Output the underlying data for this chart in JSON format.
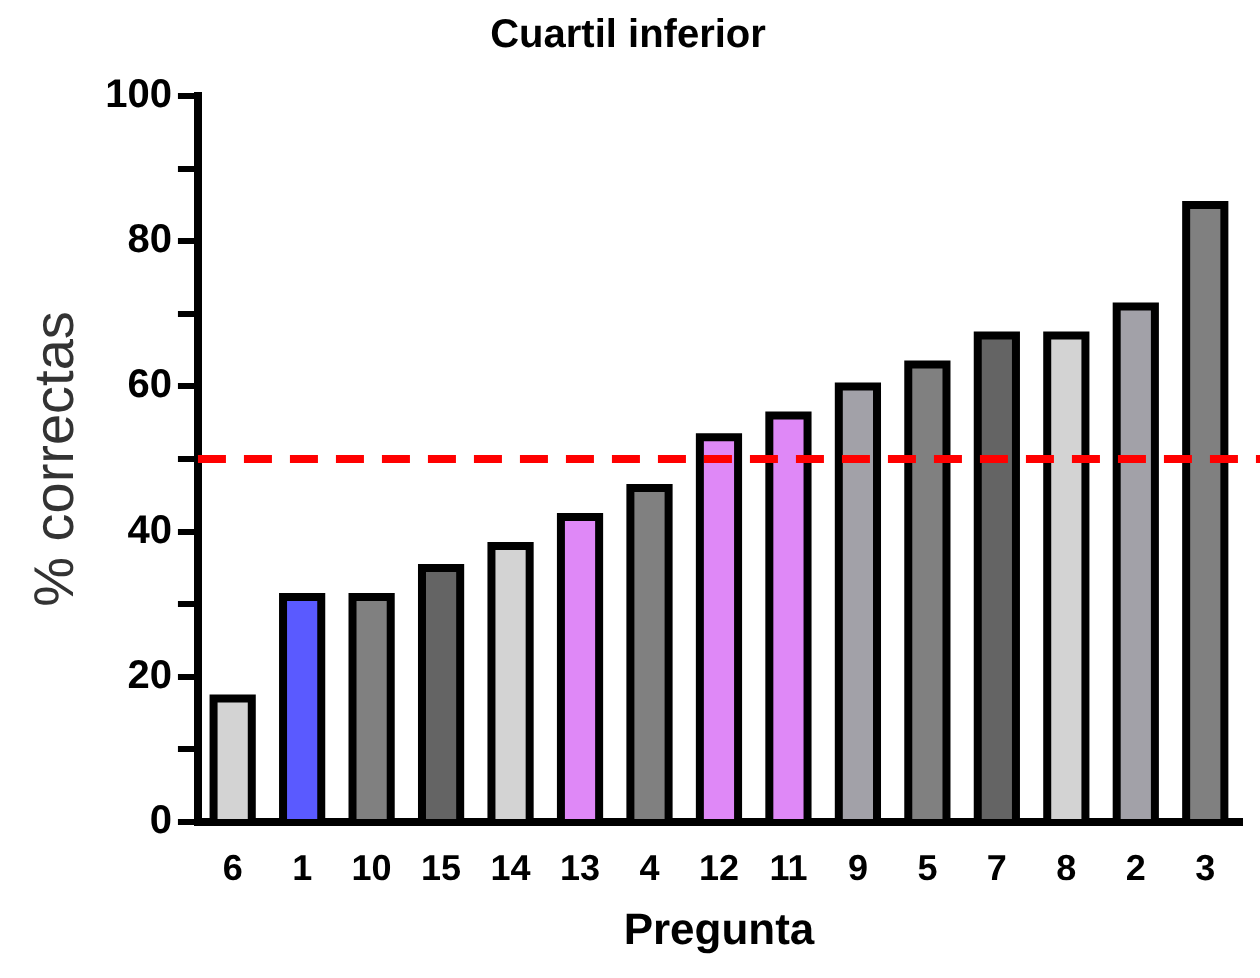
{
  "chart_data": {
    "type": "bar",
    "title": "Cuartil inferior",
    "xlabel": "Pregunta",
    "ylabel": "% correctas",
    "categories": [
      "6",
      "1",
      "10",
      "15",
      "14",
      "13",
      "4",
      "12",
      "11",
      "9",
      "5",
      "7",
      "8",
      "2",
      "3"
    ],
    "values": [
      17,
      31,
      31,
      35,
      38,
      42,
      46,
      53,
      56,
      60,
      63,
      67,
      67,
      71,
      85
    ],
    "colors": [
      "#d3d3d3",
      "#5a5aff",
      "#808080",
      "#646464",
      "#d3d3d3",
      "#df88f7",
      "#808080",
      "#df88f7",
      "#df88f7",
      "#a2a1a8",
      "#808080",
      "#646464",
      "#d3d3d3",
      "#a2a1a8",
      "#808080"
    ],
    "ylim": [
      0,
      100
    ],
    "yticks": [
      0,
      20,
      40,
      60,
      80,
      100
    ],
    "grid": false,
    "legend": false,
    "ref_lines": [
      {
        "axis": "y",
        "value": 50,
        "color": "#ff0000",
        "line_style": "dashed"
      }
    ]
  }
}
